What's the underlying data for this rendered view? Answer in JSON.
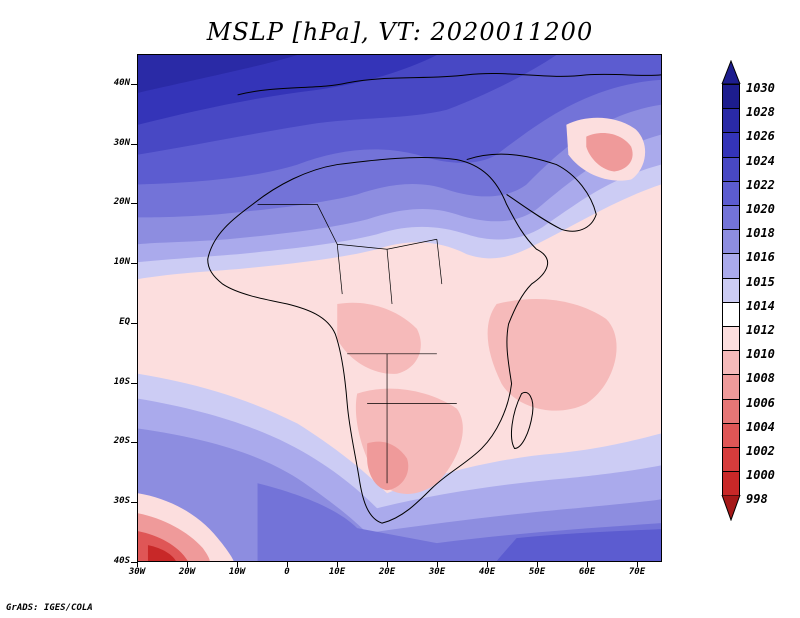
{
  "title": "MSLP [hPa], VT: 2020011200",
  "footer": "GrADS: IGES/COLA",
  "y_axis": {
    "ticks": [
      {
        "label": "40N",
        "lat": 40
      },
      {
        "label": "30N",
        "lat": 30
      },
      {
        "label": "20N",
        "lat": 20
      },
      {
        "label": "10N",
        "lat": 10
      },
      {
        "label": "EQ",
        "lat": 0
      },
      {
        "label": "10S",
        "lat": -10
      },
      {
        "label": "20S",
        "lat": -20
      },
      {
        "label": "30S",
        "lat": -30
      },
      {
        "label": "40S",
        "lat": -40
      }
    ]
  },
  "x_axis": {
    "ticks": [
      {
        "label": "30W",
        "lon": -30
      },
      {
        "label": "20W",
        "lon": -20
      },
      {
        "label": "10W",
        "lon": -10
      },
      {
        "label": "0",
        "lon": 0
      },
      {
        "label": "10E",
        "lon": 10
      },
      {
        "label": "20E",
        "lon": 20
      },
      {
        "label": "30E",
        "lon": 30
      },
      {
        "label": "40E",
        "lon": 40
      },
      {
        "label": "50E",
        "lon": 50
      },
      {
        "label": "60E",
        "lon": 60
      },
      {
        "label": "70E",
        "lon": 70
      }
    ]
  },
  "colorbar": {
    "levels": [
      "1030",
      "1028",
      "1026",
      "1024",
      "1022",
      "1020",
      "1018",
      "1016",
      "1015",
      "1014",
      "1012",
      "1010",
      "1008",
      "1006",
      "1004",
      "1002",
      "1000",
      "998"
    ],
    "colors": [
      "#1d1d8e",
      "#2a2aa6",
      "#3434b8",
      "#4848c4",
      "#5c5cd0",
      "#7373d8",
      "#8d8de0",
      "#aaaaec",
      "#ccccf4",
      "#ffffff",
      "#fcdede",
      "#f6baba",
      "#ef9a9a",
      "#e67676",
      "#df5656",
      "#d63c3c",
      "#c82828",
      "#a51818"
    ]
  }
}
